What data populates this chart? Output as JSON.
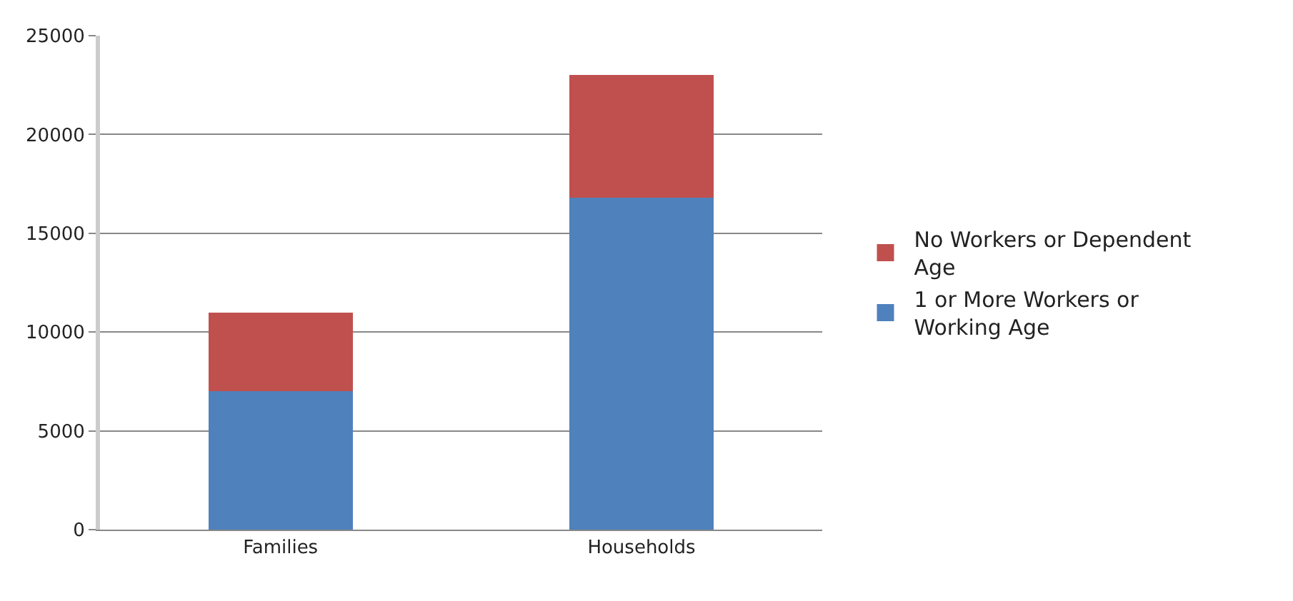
{
  "chart_data": {
    "type": "bar",
    "stacked": true,
    "categories": [
      "Families",
      "Households"
    ],
    "series": [
      {
        "name": "1 or More Workers or Working Age",
        "color": "#4f81bd",
        "values": [
          7000,
          16800
        ]
      },
      {
        "name": "No Workers or Dependent Age",
        "color": "#c0504d",
        "values": [
          4000,
          6200
        ]
      }
    ],
    "ylim": [
      0,
      25000
    ],
    "yticks": [
      0,
      5000,
      10000,
      15000,
      20000,
      25000
    ],
    "grid": "y",
    "legend": "right"
  }
}
